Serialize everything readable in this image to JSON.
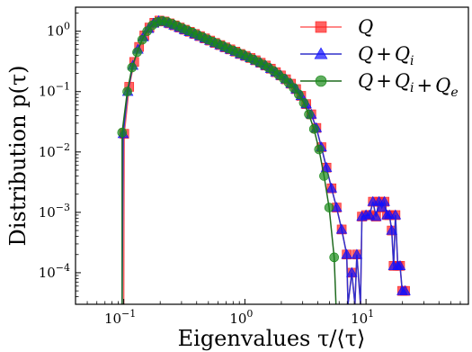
{
  "chart_data": {
    "type": "line",
    "x_scale": "log",
    "y_scale": "log",
    "xlim": [
      0.04,
      70
    ],
    "ylim": [
      3e-05,
      2.5
    ],
    "grid": false,
    "legend_position": "top-right",
    "x_ticks": [
      {
        "value": 0.1,
        "base": "10",
        "exp": "−1"
      },
      {
        "value": 1,
        "base": "10",
        "exp": "0"
      },
      {
        "value": 10,
        "base": "10",
        "exp": "1"
      }
    ],
    "y_ticks": [
      {
        "value": 1,
        "base": "10",
        "exp": "0"
      },
      {
        "value": 0.1,
        "base": "10",
        "exp": "−1"
      },
      {
        "value": 0.01,
        "base": "10",
        "exp": "−2"
      },
      {
        "value": 0.001,
        "base": "10",
        "exp": "−3"
      },
      {
        "value": 0.0001,
        "base": "10",
        "exp": "−4"
      }
    ],
    "xlabel": "Eigenvalues τ/⟨τ⟩",
    "ylabel": "Distribution p(τ)",
    "series": [
      {
        "name": "Q",
        "color": "#ff2020",
        "line_color": "#ff6060",
        "marker": "square",
        "points": [
          [
            0.1,
            3e-05
          ],
          [
            0.101,
            0.02
          ],
          [
            0.111,
            0.12
          ],
          [
            0.122,
            0.31
          ],
          [
            0.134,
            0.55
          ],
          [
            0.148,
            0.85
          ],
          [
            0.163,
            1.15
          ],
          [
            0.179,
            1.38
          ],
          [
            0.197,
            1.5
          ],
          [
            0.217,
            1.45
          ],
          [
            0.239,
            1.35
          ],
          [
            0.263,
            1.25
          ],
          [
            0.29,
            1.15
          ],
          [
            0.319,
            1.06
          ],
          [
            0.351,
            0.98
          ],
          [
            0.387,
            0.9
          ],
          [
            0.426,
            0.83
          ],
          [
            0.469,
            0.76
          ],
          [
            0.516,
            0.7
          ],
          [
            0.568,
            0.64
          ],
          [
            0.626,
            0.59
          ],
          [
            0.689,
            0.54
          ],
          [
            0.758,
            0.5
          ],
          [
            0.835,
            0.46
          ],
          [
            0.919,
            0.42
          ],
          [
            1.012,
            0.39
          ],
          [
            1.114,
            0.36
          ],
          [
            1.227,
            0.33
          ],
          [
            1.351,
            0.3
          ],
          [
            1.487,
            0.27
          ],
          [
            1.637,
            0.24
          ],
          [
            1.803,
            0.21
          ],
          [
            1.985,
            0.185
          ],
          [
            2.185,
            0.16
          ],
          [
            2.406,
            0.135
          ],
          [
            2.649,
            0.11
          ],
          [
            2.916,
            0.085
          ],
          [
            3.211,
            0.062
          ],
          [
            3.535,
            0.042
          ],
          [
            3.892,
            0.025
          ],
          [
            4.285,
            0.012
          ],
          [
            4.718,
            0.0055
          ],
          [
            5.194,
            0.0025
          ],
          [
            5.719,
            0.0012
          ],
          [
            6.297,
            0.00052
          ],
          [
            6.933,
            0.0002
          ],
          [
            7.1,
            3e-05
          ],
          [
            7.633,
            0.0001
          ],
          [
            8.1,
            3e-05
          ],
          [
            8.404,
            0.0002
          ],
          [
            9.0,
            3e-05
          ],
          [
            9.253,
            0.00085
          ],
          [
            10.0,
            0.0009
          ],
          [
            10.7,
            0.0009
          ],
          [
            11.4,
            0.0015
          ],
          [
            12.1,
            0.00085
          ],
          [
            12.8,
            0.0015
          ],
          [
            13.5,
            0.0012
          ],
          [
            14.2,
            0.0015
          ],
          [
            14.9,
            0.0009
          ],
          [
            15.6,
            0.0009
          ],
          [
            16.3,
            0.0005
          ],
          [
            16.9,
            0.00013
          ],
          [
            17.5,
            0.0009
          ],
          [
            18.3,
            0.00013
          ],
          [
            19.1,
            0.00013
          ],
          [
            19.9,
            5e-05
          ],
          [
            21.0,
            5e-05
          ]
        ]
      },
      {
        "name": "Q + Q_i",
        "color": "#1010ff",
        "line_color": "#3030cc",
        "marker": "triangle",
        "points": [
          [
            0.097,
            3e-05
          ],
          [
            0.099,
            0.02
          ],
          [
            0.108,
            0.1
          ],
          [
            0.119,
            0.27
          ],
          [
            0.131,
            0.5
          ],
          [
            0.145,
            0.8
          ],
          [
            0.16,
            1.1
          ],
          [
            0.176,
            1.35
          ],
          [
            0.194,
            1.48
          ],
          [
            0.214,
            1.44
          ],
          [
            0.236,
            1.35
          ],
          [
            0.26,
            1.25
          ],
          [
            0.287,
            1.15
          ],
          [
            0.316,
            1.06
          ],
          [
            0.348,
            0.98
          ],
          [
            0.384,
            0.9
          ],
          [
            0.423,
            0.83
          ],
          [
            0.466,
            0.76
          ],
          [
            0.513,
            0.7
          ],
          [
            0.565,
            0.64
          ],
          [
            0.622,
            0.59
          ],
          [
            0.685,
            0.54
          ],
          [
            0.755,
            0.5
          ],
          [
            0.831,
            0.46
          ],
          [
            0.915,
            0.42
          ],
          [
            1.008,
            0.39
          ],
          [
            1.11,
            0.36
          ],
          [
            1.223,
            0.33
          ],
          [
            1.347,
            0.3
          ],
          [
            1.483,
            0.27
          ],
          [
            1.633,
            0.24
          ],
          [
            1.799,
            0.21
          ],
          [
            1.981,
            0.185
          ],
          [
            2.181,
            0.16
          ],
          [
            2.402,
            0.135
          ],
          [
            2.645,
            0.11
          ],
          [
            2.912,
            0.085
          ],
          [
            3.207,
            0.062
          ],
          [
            3.531,
            0.042
          ],
          [
            3.888,
            0.025
          ],
          [
            4.281,
            0.012
          ],
          [
            4.714,
            0.0055
          ],
          [
            5.19,
            0.0025
          ],
          [
            5.715,
            0.0012
          ],
          [
            6.293,
            0.00052
          ],
          [
            6.929,
            0.0002
          ],
          [
            7.1,
            3e-05
          ],
          [
            7.629,
            0.0001
          ],
          [
            8.1,
            3e-05
          ],
          [
            8.4,
            0.0002
          ],
          [
            9.0,
            3e-05
          ],
          [
            9.25,
            0.00085
          ],
          [
            10.0,
            0.0009
          ],
          [
            10.7,
            0.0009
          ],
          [
            11.4,
            0.0015
          ],
          [
            12.1,
            0.00085
          ],
          [
            12.8,
            0.0015
          ],
          [
            13.5,
            0.0012
          ],
          [
            14.2,
            0.0015
          ],
          [
            14.9,
            0.0009
          ],
          [
            15.6,
            0.0009
          ],
          [
            16.3,
            0.0005
          ],
          [
            16.9,
            0.00013
          ],
          [
            17.5,
            0.0009
          ],
          [
            18.3,
            0.00013
          ],
          [
            19.1,
            0.00013
          ],
          [
            19.9,
            5e-05
          ],
          [
            21.0,
            5e-05
          ]
        ]
      },
      {
        "name": "Q + Q_i + Q_e",
        "color": "#1a8a1a",
        "line_color": "#1f6b1f",
        "marker": "circle",
        "points": [
          [
            0.097,
            3e-05
          ],
          [
            0.097,
            0.021
          ],
          [
            0.107,
            0.1
          ],
          [
            0.117,
            0.25
          ],
          [
            0.129,
            0.45
          ],
          [
            0.142,
            0.72
          ],
          [
            0.156,
            1.0
          ],
          [
            0.172,
            1.25
          ],
          [
            0.189,
            1.42
          ],
          [
            0.208,
            1.48
          ],
          [
            0.229,
            1.42
          ],
          [
            0.252,
            1.32
          ],
          [
            0.277,
            1.22
          ],
          [
            0.305,
            1.12
          ],
          [
            0.336,
            1.03
          ],
          [
            0.37,
            0.95
          ],
          [
            0.407,
            0.87
          ],
          [
            0.448,
            0.8
          ],
          [
            0.493,
            0.73
          ],
          [
            0.543,
            0.67
          ],
          [
            0.598,
            0.62
          ],
          [
            0.658,
            0.57
          ],
          [
            0.725,
            0.52
          ],
          [
            0.798,
            0.48
          ],
          [
            0.878,
            0.44
          ],
          [
            0.967,
            0.41
          ],
          [
            1.065,
            0.37
          ],
          [
            1.172,
            0.34
          ],
          [
            1.29,
            0.31
          ],
          [
            1.42,
            0.28
          ],
          [
            1.564,
            0.25
          ],
          [
            1.722,
            0.22
          ],
          [
            1.896,
            0.19
          ],
          [
            2.087,
            0.165
          ],
          [
            2.298,
            0.14
          ],
          [
            2.53,
            0.115
          ],
          [
            2.785,
            0.09
          ],
          [
            3.066,
            0.065
          ],
          [
            3.376,
            0.042
          ],
          [
            3.716,
            0.024
          ],
          [
            4.091,
            0.011
          ],
          [
            4.504,
            0.004
          ],
          [
            4.959,
            0.0012
          ],
          [
            5.459,
            0.00018
          ],
          [
            5.65,
            3e-05
          ]
        ]
      }
    ],
    "legend": [
      {
        "base": "Q",
        "parts": []
      },
      {
        "base": "Q",
        "parts": [
          {
            "op": "+",
            "sym": "Q",
            "sub": "i"
          }
        ]
      },
      {
        "base": "Q",
        "parts": [
          {
            "op": "+",
            "sym": "Q",
            "sub": "i"
          },
          {
            "op": "+",
            "sym": "Q",
            "sub": "e"
          }
        ]
      }
    ]
  }
}
